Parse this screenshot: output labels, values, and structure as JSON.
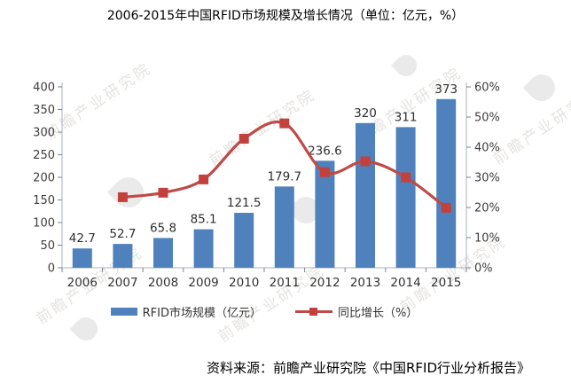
{
  "title": "2006-2015年中国RFID市场规模及增长情况（单位：亿元，%）",
  "chart_data": {
    "type": "combo",
    "categories": [
      "2006",
      "2007",
      "2008",
      "2009",
      "2010",
      "2011",
      "2012",
      "2013",
      "2014",
      "2015"
    ],
    "series": [
      {
        "name": "RFID市场规模（亿元）",
        "type": "bar",
        "axis": "left",
        "color": "#4F81BD",
        "values": [
          42.7,
          52.7,
          65.8,
          85.1,
          121.5,
          179.7,
          236.6,
          320,
          311,
          373
        ],
        "value_labels": [
          "42.7",
          "52.7",
          "65.8",
          "85.1",
          "121.5",
          "179.7",
          "236.6",
          "320",
          "311",
          "373"
        ]
      },
      {
        "name": "同比增长（%）",
        "type": "line",
        "axis": "right",
        "color": "#BE4B48",
        "marker": "square",
        "marker_color": "#C2413D",
        "values": [
          null,
          23.4,
          24.9,
          29.3,
          42.8,
          47.9,
          31.7,
          35.3,
          30,
          19.9
        ]
      }
    ],
    "left_axis": {
      "min": 0,
      "max": 400,
      "step": 50,
      "tick_labels": [
        "0",
        "50",
        "100",
        "150",
        "200",
        "250",
        "300",
        "350",
        "400"
      ]
    },
    "right_axis": {
      "min": 0,
      "max": 60,
      "step": 10,
      "suffix": "%",
      "tick_labels": [
        "0%",
        "10%",
        "20%",
        "30%",
        "40%",
        "50%",
        "60%"
      ]
    },
    "grid": false,
    "legend_position": "bottom"
  },
  "legend": {
    "items": [
      {
        "label": "RFID市场规模（亿元）",
        "color": "#4F81BD"
      },
      {
        "label": "同比增长（%）",
        "color": "#BE4B48"
      }
    ]
  },
  "source": {
    "label": "资料来源：前瞻产业研究院《中国RFID行业分析报告》"
  },
  "watermark": {
    "text": "前瞻产业研究院"
  }
}
